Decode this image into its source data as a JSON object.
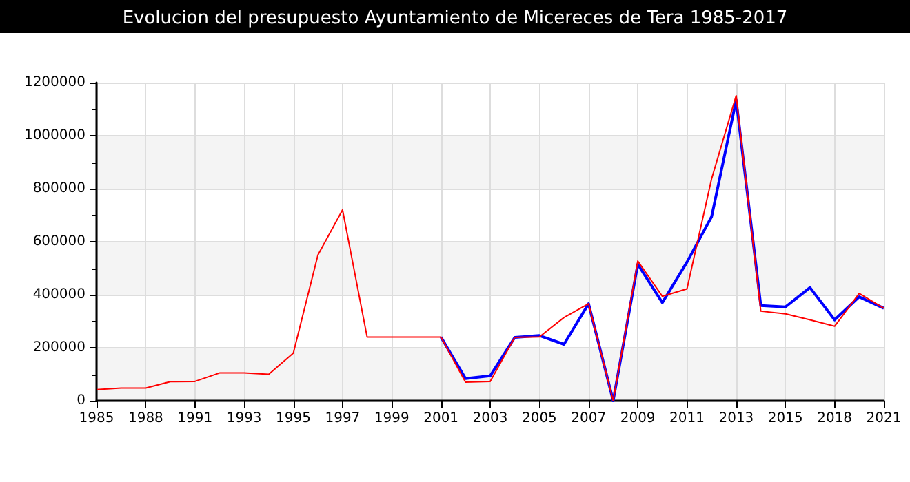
{
  "chart_data": {
    "type": "line",
    "title": "Evolucion del presupuesto Ayuntamiento de Micereces de Tera 1985-2017",
    "categories": [
      "1985",
      null,
      "1988",
      null,
      "1991",
      null,
      "1993",
      null,
      "1995",
      null,
      "1997",
      null,
      "1999",
      null,
      "2001",
      null,
      "2003",
      null,
      "2005",
      null,
      "2007",
      null,
      "2009",
      null,
      "2011",
      null,
      "2013",
      null,
      "2015",
      null,
      "2018",
      null,
      "2021"
    ],
    "series": [
      {
        "color": "#0000ff",
        "values": [
          null,
          null,
          null,
          null,
          null,
          null,
          null,
          null,
          null,
          null,
          null,
          null,
          null,
          null,
          240000,
          84000,
          94000,
          239000,
          246000,
          213000,
          366000,
          0,
          515000,
          370000,
          523000,
          694000,
          1134000,
          359000,
          354000,
          427000,
          305000,
          392000,
          349000
        ]
      },
      {
        "color": "#ff0000",
        "values": [
          42000,
          48000,
          48000,
          72000,
          73000,
          105000,
          105000,
          100000,
          180000,
          550000,
          720000,
          240000,
          240000,
          240000,
          240000,
          70000,
          73000,
          239000,
          241000,
          314000,
          366000,
          0,
          527000,
          394000,
          422000,
          837000,
          1151000,
          338000,
          328000,
          305000,
          281000,
          405000,
          349000
        ]
      }
    ],
    "ylim": [
      0,
      1200000
    ],
    "yticks": [
      0,
      200000,
      400000,
      600000,
      800000,
      1000000,
      1200000
    ],
    "grid": true,
    "marker": "none",
    "line_style": "solid"
  }
}
